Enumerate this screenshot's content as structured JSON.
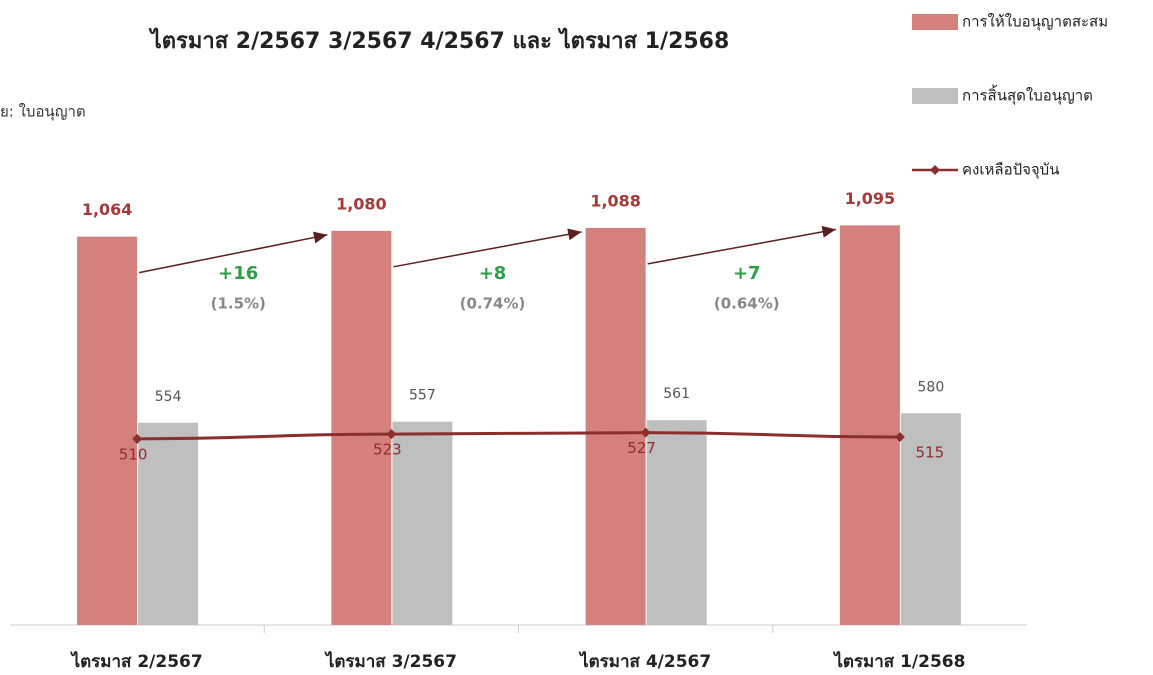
{
  "chart_data": {
    "type": "bar",
    "title": "ไตรมาส 2/2567 3/2567 4/2567 และ ไตรมาส 1/2568",
    "unit_label": "ย: ใบอนุญาต",
    "categories": [
      "ไตรมาส 2/2567",
      "ไตรมาส 3/2567",
      "ไตรมาส 4/2567",
      "ไตรมาส 1/2568"
    ],
    "ylim": [
      0,
      1200
    ],
    "series": [
      {
        "name": "การให้ใบอนุญาตสะสม",
        "color": "#d4807d",
        "kind": "bar",
        "values": [
          1064,
          1080,
          1088,
          1095
        ],
        "value_labels": [
          "1,064",
          "1,080",
          "1,088",
          "1,095"
        ]
      },
      {
        "name": "การสิ้นสุดใบอนุญาต",
        "color": "#bfbfbf",
        "kind": "bar",
        "values": [
          554,
          557,
          561,
          580
        ]
      },
      {
        "name": "คงเหลือปัจจุบัน",
        "color": "#8b2e2e",
        "kind": "line",
        "values": [
          510,
          523,
          527,
          515
        ]
      }
    ],
    "annotations": [
      {
        "change": "+16",
        "percent": "(1.5%)"
      },
      {
        "change": "+8",
        "percent": "(0.74%)"
      },
      {
        "change": "+7",
        "percent": "(0.64%)"
      }
    ]
  }
}
